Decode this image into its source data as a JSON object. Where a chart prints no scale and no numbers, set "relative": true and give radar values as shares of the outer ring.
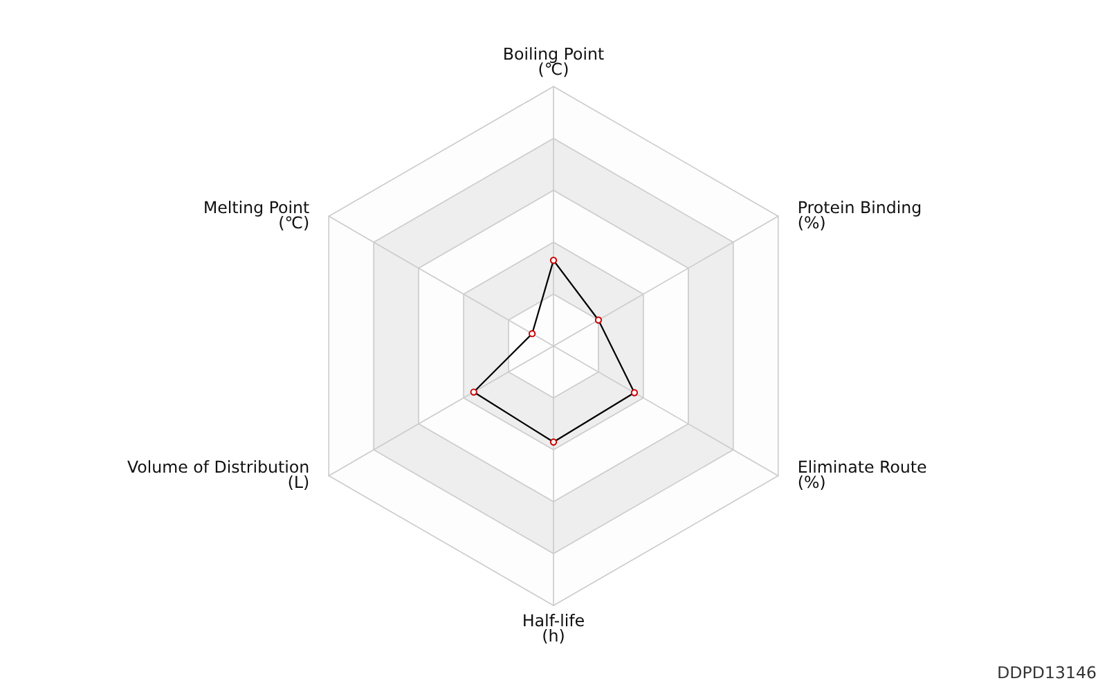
{
  "chart_data": {
    "type": "radar",
    "relative": true,
    "grid": true,
    "marker": "circle",
    "line_style": "solid",
    "categories": [
      "Boiling Point\n(℃)",
      "Protein Binding\n(%)",
      "Eliminate Route\n(%)",
      "Half-life\n(h)",
      "Volume of Distribution\n(L)",
      "Melting Point\n(℃)"
    ],
    "series": [
      {
        "color": "#000000",
        "values": [
          0.33,
          0.2,
          0.36,
          0.37,
          0.355,
          0.095
        ]
      }
    ],
    "annotations": [
      "DDPD13146"
    ]
  }
}
